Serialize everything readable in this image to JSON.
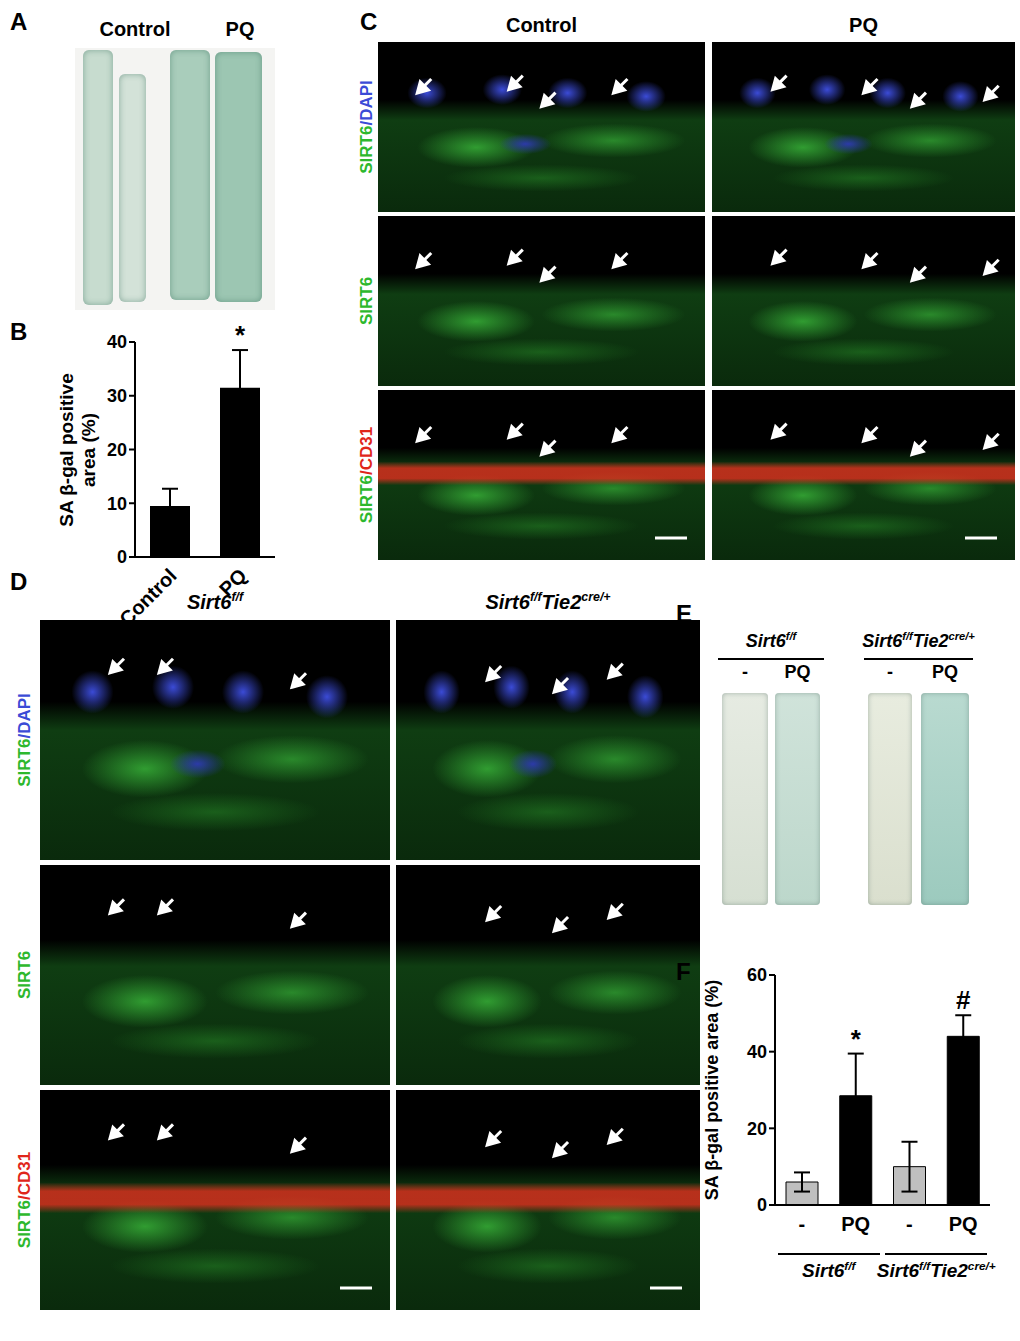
{
  "chart_data": [
    {
      "type": "bar",
      "categories": [
        "Control",
        "PQ"
      ],
      "values": [
        9.5,
        31.5
      ],
      "errors": [
        3.2,
        7
      ],
      "color": "#000000",
      "ylabel": "SA β-gal positive area (%)",
      "ylim": [
        0,
        40
      ],
      "yticks": [
        0,
        10,
        20,
        30,
        40
      ],
      "annotations": [
        {
          "index": 1,
          "text": "*"
        }
      ]
    },
    {
      "type": "bar",
      "categories": [
        "-",
        "PQ",
        "-",
        "PQ"
      ],
      "values": [
        6,
        28.5,
        10,
        44
      ],
      "errors": [
        2.5,
        11,
        6.5,
        5.5
      ],
      "colors": [
        "#bfbfbf",
        "#000000",
        "#bfbfbf",
        "#000000"
      ],
      "ylabel": "SA β-gal positive area (%)",
      "ylim": [
        0,
        60
      ],
      "yticks": [
        0,
        20,
        40,
        60
      ],
      "annotations": [
        {
          "index": 1,
          "text": "*"
        },
        {
          "index": 3,
          "text": "#"
        }
      ],
      "groups": [
        {
          "label": [
            {
              "text": "Sirt6",
              "sup": "f/f"
            }
          ],
          "indices": [
            0,
            1
          ]
        },
        {
          "label": [
            {
              "text": "Sirt6",
              "sup": "f/f"
            },
            {
              "text": "Tie2",
              "sup": "cre/+"
            }
          ],
          "indices": [
            2,
            3
          ]
        }
      ]
    }
  ],
  "panels": {
    "A": {
      "label": "A",
      "columns": [
        "Control",
        "PQ"
      ]
    },
    "B": {
      "label": "B"
    },
    "C": {
      "label": "C",
      "columns": [
        "Control",
        "PQ"
      ],
      "rows": [
        [
          {
            "text": "SIRT6",
            "color": "#2db82d"
          },
          {
            "text": "/DAPI",
            "color": "#3b4bd6"
          }
        ],
        [
          {
            "text": "SIRT6",
            "color": "#2db82d"
          }
        ],
        [
          {
            "text": "SIRT6",
            "color": "#2db82d"
          },
          {
            "text": "/CD31",
            "color": "#e0261b"
          }
        ]
      ]
    },
    "D": {
      "label": "D",
      "columns": [
        [
          {
            "text": "Sirt6",
            "sup": "f/f"
          }
        ],
        [
          {
            "text": "Sirt6",
            "sup": "f/f"
          },
          {
            "text": "Tie2",
            "sup": "cre/+"
          }
        ]
      ],
      "rows": [
        [
          {
            "text": "SIRT6",
            "color": "#2db82d"
          },
          {
            "text": "/DAPI",
            "color": "#3b4bd6"
          }
        ],
        [
          {
            "text": "SIRT6",
            "color": "#2db82d"
          }
        ],
        [
          {
            "text": "SIRT6",
            "color": "#2db82d"
          },
          {
            "text": "/CD31",
            "color": "#e0261b"
          }
        ]
      ]
    },
    "E": {
      "label": "E",
      "genotypes": [
        [
          {
            "text": "Sirt6",
            "sup": "f/f"
          }
        ],
        [
          {
            "text": "Sirt6",
            "sup": "f/f"
          },
          {
            "text": "Tie2",
            "sup": "cre/+"
          }
        ]
      ],
      "treatments": [
        "-",
        "PQ",
        "-",
        "PQ"
      ]
    },
    "F": {
      "label": "F"
    }
  }
}
